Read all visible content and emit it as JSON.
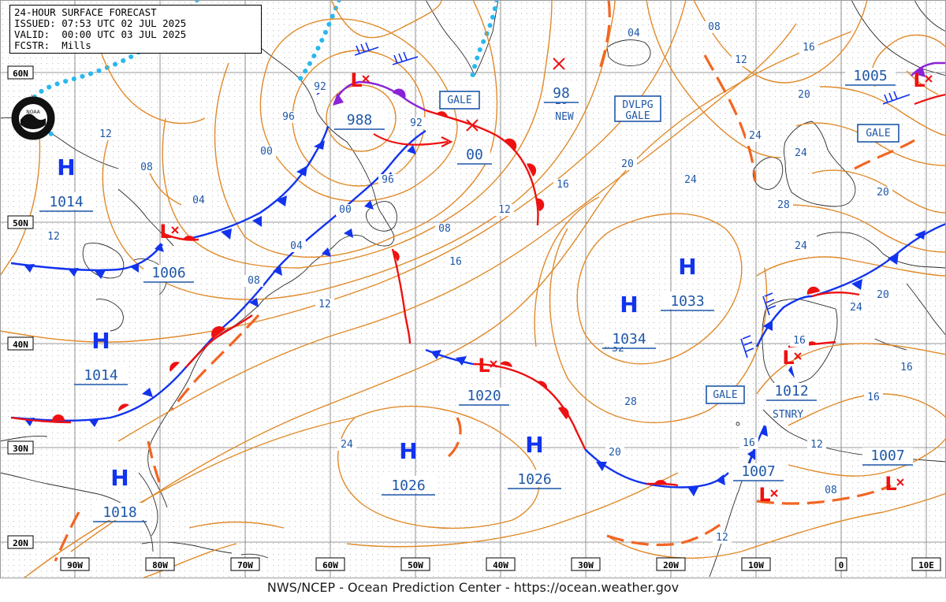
{
  "header": {
    "title": "24-HOUR SURFACE FORECAST",
    "issued": "ISSUED: 07:53 UTC 02 JUL 2025",
    "valid": "VALID:  00:00 UTC 03 JUL 2025",
    "forecaster": "FCSTR:  Mills"
  },
  "footer": {
    "credit": "NWS/NCEP - Ocean Prediction Center - https://ocean.weather.gov"
  },
  "logo": {
    "text": "NOAA"
  },
  "colors": {
    "isobar": "#e08a2a",
    "warm": "#ee1111",
    "cold": "#1133ee",
    "occluded": "#8a22d8",
    "trough": "#f26522",
    "label": "#1e57a8",
    "ice": "#29b8ee"
  },
  "lat_labels": [
    "60N",
    "50N",
    "40N",
    "30N",
    "20N"
  ],
  "lon_labels": [
    "90W",
    "80W",
    "70W",
    "60W",
    "50W",
    "40W",
    "30W",
    "20W",
    "10W",
    "0",
    "10E"
  ],
  "highs": [
    {
      "letter": "H",
      "pressure": "1014"
    },
    {
      "letter": "H",
      "pressure": "1014"
    },
    {
      "letter": "H",
      "pressure": "1018"
    },
    {
      "letter": "H",
      "pressure": "1026"
    },
    {
      "letter": "H",
      "pressure": "1026"
    },
    {
      "letter": "H",
      "pressure": "1034"
    },
    {
      "letter": "H",
      "pressure": "1033"
    }
  ],
  "lows": [
    {
      "letter": "L",
      "pressure": "988"
    },
    {
      "letter": "L",
      "pressure": "1006"
    },
    {
      "letter": "L",
      "pressure": "1020"
    },
    {
      "letter": "L",
      "pressure": "1012"
    },
    {
      "letter": "L",
      "pressure": "1007"
    },
    {
      "letter": "L",
      "pressure": "1007"
    },
    {
      "letter": "L",
      "pressure": "1005"
    }
  ],
  "new_lows": [
    {
      "pressure": "00"
    },
    {
      "pressure": "98",
      "tag": "NEW"
    }
  ],
  "box_labels": [
    "GALE",
    "DVLPG\nGALE",
    "GALE",
    "GALE"
  ],
  "stationary_label": "STNRY",
  "isobar_labels": [
    "92",
    "96",
    "92",
    "00",
    "96",
    "00",
    "08",
    "04",
    "04",
    "12",
    "08",
    "12",
    "12",
    "08",
    "12",
    "16",
    "20",
    "24",
    "16",
    "20",
    "24",
    "28",
    "24",
    "32",
    "16",
    "04",
    "08",
    "12",
    "16",
    "20",
    "24",
    "20",
    "16",
    "20",
    "24",
    "16",
    "12",
    "08",
    "12",
    "16",
    "20",
    "24",
    "28"
  ]
}
